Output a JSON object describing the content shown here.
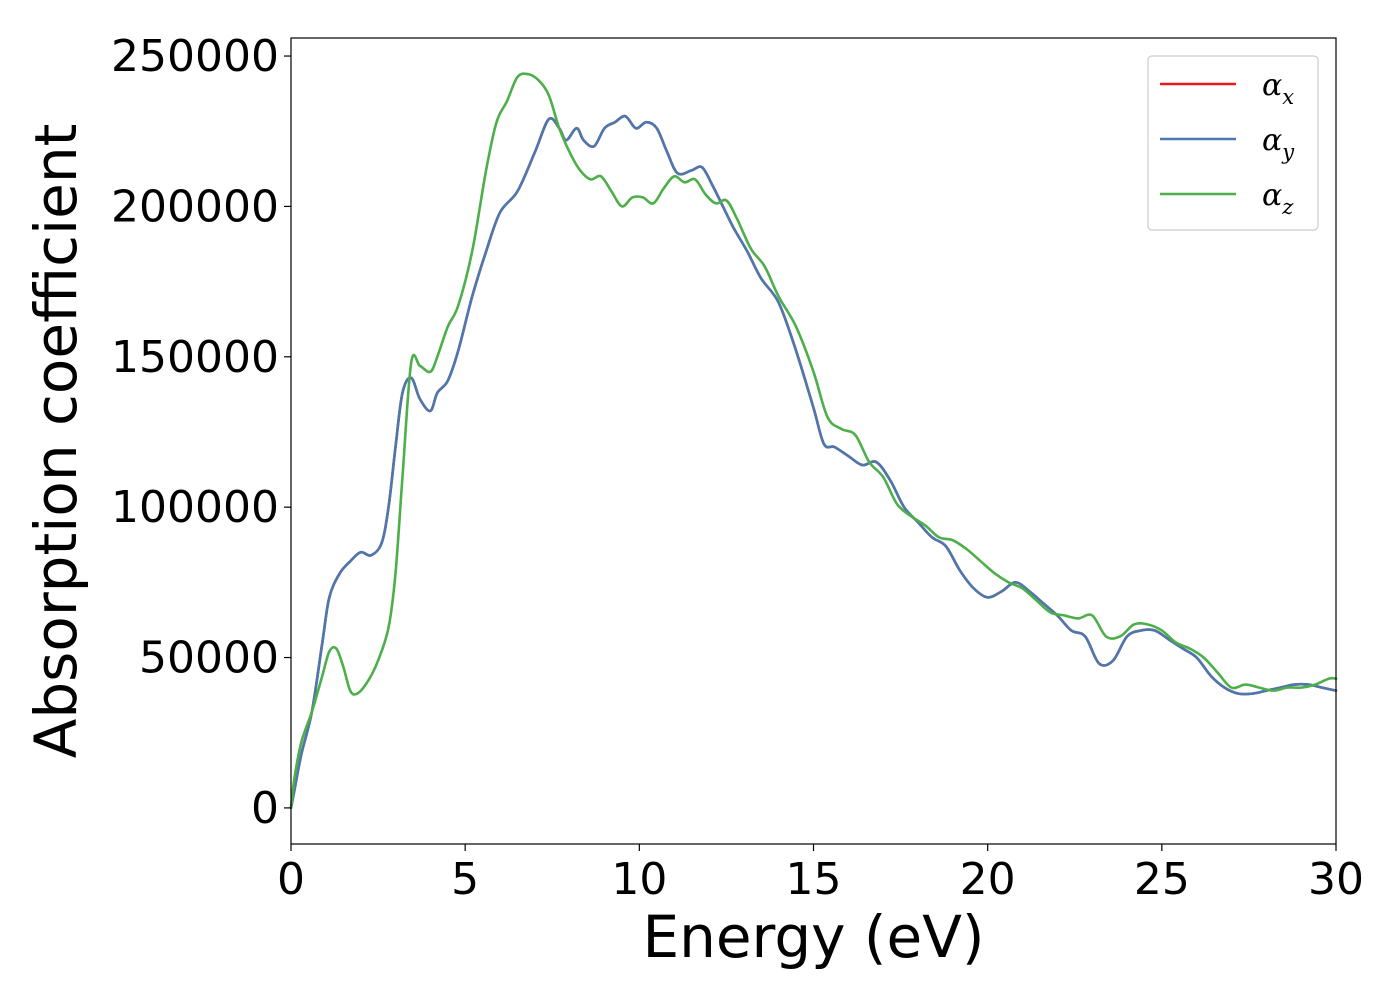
{
  "chart_data": {
    "type": "line",
    "title": "",
    "xlabel": "Energy (eV)",
    "ylabel": "Absorption coefficient",
    "xlim": [
      0,
      30
    ],
    "ylim": [
      -12000,
      256000
    ],
    "xticks": [
      0,
      5,
      10,
      15,
      20,
      25,
      30
    ],
    "yticks": [
      0,
      50000,
      100000,
      150000,
      200000,
      250000
    ],
    "grid": false,
    "legend_position": "top-right",
    "series": [
      {
        "name": "α_x",
        "legend_base": "α",
        "legend_sub": "x",
        "color": "#e41a1c",
        "x": [
          0,
          0.1,
          0.3,
          0.6,
          0.9,
          1.1,
          1.4,
          1.7,
          2.0,
          2.3,
          2.6,
          2.8,
          3.0,
          3.2,
          3.45,
          3.7,
          4.0,
          4.2,
          4.5,
          4.8,
          5.2,
          5.6,
          6.0,
          6.5,
          7.0,
          7.4,
          7.7,
          7.9,
          8.2,
          8.4,
          8.7,
          9.0,
          9.3,
          9.6,
          9.9,
          10.2,
          10.5,
          10.8,
          11.1,
          11.5,
          11.8,
          12.1,
          12.4,
          12.7,
          13.1,
          13.5,
          14.0,
          14.5,
          15.0,
          15.3,
          15.6,
          16.0,
          16.4,
          16.8,
          17.2,
          17.6,
          18.0,
          18.4,
          18.8,
          19.2,
          19.6,
          20.0,
          20.4,
          20.8,
          21.2,
          21.6,
          22.0,
          22.4,
          22.8,
          23.2,
          23.6,
          24.0,
          24.4,
          24.8,
          25.2,
          25.6,
          26.0,
          26.4,
          26.8,
          27.2,
          27.6,
          28.0,
          28.4,
          28.8,
          29.2,
          29.6,
          30.0
        ],
        "values": [
          0,
          6000,
          18000,
          32000,
          55000,
          70000,
          78000,
          82000,
          85000,
          84000,
          88000,
          100000,
          120000,
          138000,
          143000,
          136000,
          132000,
          138000,
          142000,
          152000,
          170000,
          185000,
          198000,
          205000,
          218000,
          229000,
          226000,
          222000,
          226000,
          222000,
          220000,
          226000,
          228000,
          230000,
          226000,
          228000,
          226000,
          218000,
          211000,
          212000,
          213000,
          207000,
          200000,
          193000,
          185000,
          176000,
          168000,
          152000,
          133000,
          121000,
          120000,
          117000,
          114000,
          115000,
          109000,
          100000,
          95000,
          90000,
          87000,
          79000,
          73000,
          70000,
          72000,
          75000,
          72000,
          68000,
          64000,
          59000,
          57000,
          48000,
          49000,
          57000,
          59000,
          59000,
          56000,
          53000,
          50000,
          44000,
          40000,
          38000,
          38000,
          39000,
          40000,
          41000,
          41000,
          40000,
          39000
        ]
      },
      {
        "name": "α_y",
        "legend_base": "α",
        "legend_sub": "y",
        "color": "#4a79b0",
        "x": [
          0,
          0.1,
          0.3,
          0.6,
          0.9,
          1.1,
          1.4,
          1.7,
          2.0,
          2.3,
          2.6,
          2.8,
          3.0,
          3.2,
          3.45,
          3.7,
          4.0,
          4.2,
          4.5,
          4.8,
          5.2,
          5.6,
          6.0,
          6.5,
          7.0,
          7.4,
          7.7,
          7.9,
          8.2,
          8.4,
          8.7,
          9.0,
          9.3,
          9.6,
          9.9,
          10.2,
          10.5,
          10.8,
          11.1,
          11.5,
          11.8,
          12.1,
          12.4,
          12.7,
          13.1,
          13.5,
          14.0,
          14.5,
          15.0,
          15.3,
          15.6,
          16.0,
          16.4,
          16.8,
          17.2,
          17.6,
          18.0,
          18.4,
          18.8,
          19.2,
          19.6,
          20.0,
          20.4,
          20.8,
          21.2,
          21.6,
          22.0,
          22.4,
          22.8,
          23.2,
          23.6,
          24.0,
          24.4,
          24.8,
          25.2,
          25.6,
          26.0,
          26.4,
          26.8,
          27.2,
          27.6,
          28.0,
          28.4,
          28.8,
          29.2,
          29.6,
          30.0
        ],
        "values": [
          0,
          6000,
          18000,
          32000,
          55000,
          70000,
          78000,
          82000,
          85000,
          84000,
          88000,
          100000,
          120000,
          138000,
          143000,
          136000,
          132000,
          138000,
          142000,
          152000,
          170000,
          185000,
          198000,
          205000,
          218000,
          229000,
          226000,
          222000,
          226000,
          222000,
          220000,
          226000,
          228000,
          230000,
          226000,
          228000,
          226000,
          218000,
          211000,
          212000,
          213000,
          207000,
          200000,
          193000,
          185000,
          176000,
          168000,
          152000,
          133000,
          121000,
          120000,
          117000,
          114000,
          115000,
          109000,
          100000,
          95000,
          90000,
          87000,
          79000,
          73000,
          70000,
          72000,
          75000,
          72000,
          68000,
          64000,
          59000,
          57000,
          48000,
          49000,
          57000,
          59000,
          59000,
          56000,
          53000,
          50000,
          44000,
          40000,
          38000,
          38000,
          39000,
          40000,
          41000,
          41000,
          40000,
          39000
        ]
      },
      {
        "name": "α_z",
        "legend_base": "α",
        "legend_sub": "z",
        "color": "#4daf4a",
        "x": [
          0,
          0.1,
          0.3,
          0.6,
          0.9,
          1.1,
          1.3,
          1.5,
          1.7,
          1.9,
          2.2,
          2.5,
          2.8,
          3.0,
          3.2,
          3.45,
          3.7,
          4.0,
          4.2,
          4.5,
          4.8,
          5.2,
          5.6,
          5.9,
          6.2,
          6.5,
          6.8,
          7.1,
          7.4,
          7.7,
          8.0,
          8.3,
          8.6,
          8.9,
          9.2,
          9.5,
          9.8,
          10.1,
          10.4,
          10.7,
          11.0,
          11.3,
          11.6,
          11.9,
          12.2,
          12.5,
          12.8,
          13.2,
          13.6,
          14.0,
          14.5,
          15.0,
          15.4,
          15.8,
          16.2,
          16.6,
          17.0,
          17.4,
          17.8,
          18.2,
          18.6,
          19.0,
          19.4,
          19.8,
          20.2,
          20.6,
          21.0,
          21.4,
          21.8,
          22.2,
          22.6,
          23.0,
          23.4,
          23.8,
          24.2,
          24.6,
          25.0,
          25.4,
          25.8,
          26.2,
          26.6,
          27.0,
          27.4,
          27.8,
          28.2,
          28.6,
          29.0,
          29.4,
          29.8,
          30.0
        ],
        "values": [
          0,
          10000,
          22000,
          32000,
          44000,
          52000,
          53000,
          47000,
          39000,
          38000,
          42000,
          49000,
          60000,
          78000,
          110000,
          148000,
          147000,
          145000,
          150000,
          160000,
          167000,
          185000,
          212000,
          228000,
          235000,
          243000,
          244000,
          242000,
          237000,
          226000,
          218000,
          212000,
          209000,
          210000,
          205000,
          200000,
          203000,
          203000,
          201000,
          206000,
          210000,
          208000,
          209000,
          204000,
          201000,
          202000,
          196000,
          186000,
          180000,
          170000,
          160000,
          145000,
          130000,
          126000,
          124000,
          115000,
          110000,
          101000,
          97000,
          94000,
          90000,
          89000,
          86000,
          82000,
          78000,
          75000,
          73000,
          69000,
          65000,
          64000,
          63000,
          64000,
          57000,
          57000,
          61000,
          61000,
          59000,
          55000,
          53000,
          50000,
          45000,
          40000,
          41000,
          40000,
          39000,
          40000,
          40000,
          41000,
          43000,
          43000
        ]
      }
    ]
  }
}
